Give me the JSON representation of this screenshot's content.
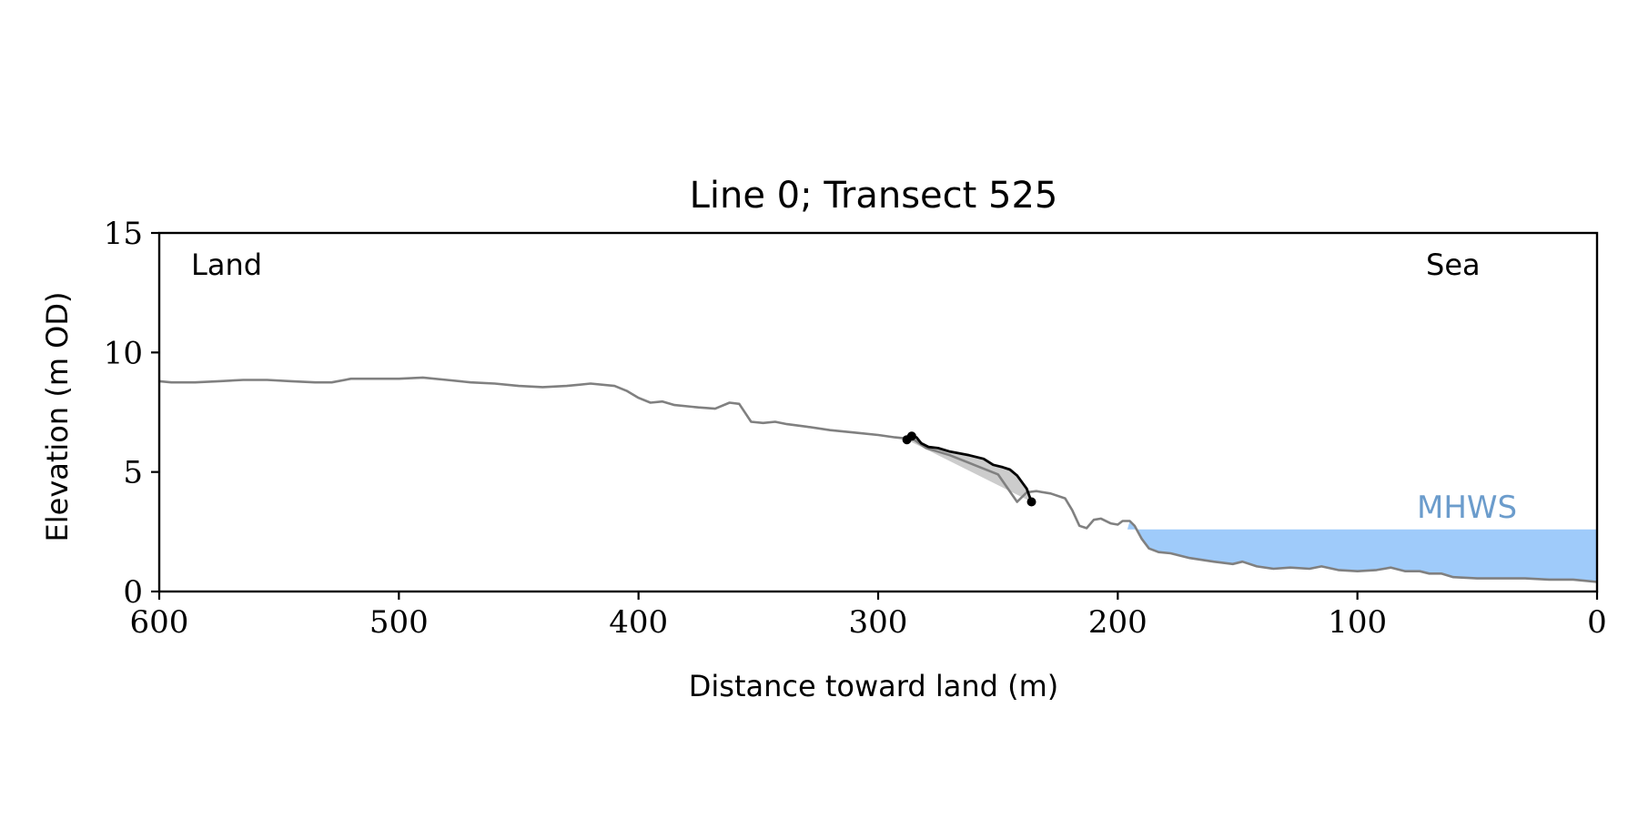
{
  "chart_data": {
    "type": "line",
    "title": "Line 0; Transect 525",
    "xlabel": "Distance toward land (m)",
    "ylabel": "Elevation (m OD)",
    "xlim": [
      600,
      0
    ],
    "ylim": [
      0,
      15
    ],
    "x_ticks": [
      600,
      500,
      400,
      300,
      200,
      100,
      0
    ],
    "y_ticks": [
      0,
      5,
      10,
      15
    ],
    "grid": false,
    "annotations": {
      "land": "Land",
      "sea": "Sea",
      "mhws": "MHWS"
    },
    "mhws": {
      "elevation": 2.6,
      "x_start": 196,
      "x_end": 0
    },
    "series": [
      {
        "role": "profile",
        "color": "#808080",
        "points": [
          [
            600,
            8.8
          ],
          [
            595,
            8.75
          ],
          [
            585,
            8.75
          ],
          [
            575,
            8.8
          ],
          [
            565,
            8.85
          ],
          [
            555,
            8.85
          ],
          [
            545,
            8.8
          ],
          [
            535,
            8.75
          ],
          [
            528,
            8.75
          ],
          [
            520,
            8.9
          ],
          [
            510,
            8.9
          ],
          [
            500,
            8.9
          ],
          [
            490,
            8.95
          ],
          [
            480,
            8.85
          ],
          [
            470,
            8.75
          ],
          [
            460,
            8.7
          ],
          [
            450,
            8.6
          ],
          [
            440,
            8.55
          ],
          [
            430,
            8.6
          ],
          [
            420,
            8.7
          ],
          [
            410,
            8.6
          ],
          [
            405,
            8.4
          ],
          [
            400,
            8.1
          ],
          [
            395,
            7.9
          ],
          [
            390,
            7.95
          ],
          [
            385,
            7.8
          ],
          [
            375,
            7.7
          ],
          [
            368,
            7.65
          ],
          [
            362,
            7.9
          ],
          [
            358,
            7.85
          ],
          [
            353,
            7.1
          ],
          [
            348,
            7.05
          ],
          [
            343,
            7.1
          ],
          [
            338,
            7.0
          ],
          [
            330,
            6.9
          ],
          [
            320,
            6.75
          ],
          [
            310,
            6.65
          ],
          [
            300,
            6.55
          ],
          [
            293,
            6.45
          ],
          [
            288,
            6.4
          ],
          [
            285,
            6.35
          ],
          [
            280,
            6.0
          ],
          [
            270,
            5.7
          ],
          [
            260,
            5.3
          ],
          [
            250,
            4.9
          ],
          [
            242,
            3.75
          ],
          [
            238,
            4.15
          ],
          [
            234,
            4.2
          ],
          [
            228,
            4.1
          ],
          [
            222,
            3.9
          ],
          [
            219,
            3.4
          ],
          [
            216,
            2.75
          ],
          [
            213,
            2.65
          ],
          [
            210,
            3.0
          ],
          [
            207,
            3.05
          ],
          [
            203,
            2.85
          ],
          [
            200,
            2.8
          ],
          [
            198,
            2.95
          ],
          [
            195,
            2.95
          ],
          [
            193,
            2.75
          ],
          [
            190,
            2.2
          ],
          [
            187,
            1.8
          ],
          [
            183,
            1.65
          ],
          [
            178,
            1.6
          ],
          [
            170,
            1.4
          ],
          [
            160,
            1.25
          ],
          [
            152,
            1.15
          ],
          [
            148,
            1.25
          ],
          [
            142,
            1.05
          ],
          [
            135,
            0.95
          ],
          [
            128,
            1.0
          ],
          [
            120,
            0.95
          ],
          [
            115,
            1.05
          ],
          [
            108,
            0.9
          ],
          [
            100,
            0.85
          ],
          [
            92,
            0.9
          ],
          [
            86,
            1.0
          ],
          [
            80,
            0.85
          ],
          [
            74,
            0.85
          ],
          [
            70,
            0.75
          ],
          [
            65,
            0.75
          ],
          [
            60,
            0.6
          ],
          [
            50,
            0.55
          ],
          [
            40,
            0.55
          ],
          [
            30,
            0.55
          ],
          [
            20,
            0.5
          ],
          [
            10,
            0.5
          ],
          [
            5,
            0.45
          ],
          [
            0,
            0.4
          ]
        ]
      },
      {
        "role": "cliff_face",
        "color": "#000000",
        "points": [
          [
            288,
            6.35
          ],
          [
            286,
            6.5
          ],
          [
            284,
            6.45
          ],
          [
            282,
            6.2
          ],
          [
            279,
            6.05
          ],
          [
            275,
            6.0
          ],
          [
            270,
            5.85
          ],
          [
            262,
            5.7
          ],
          [
            256,
            5.55
          ],
          [
            252,
            5.3
          ],
          [
            248,
            5.2
          ],
          [
            245,
            5.1
          ],
          [
            242,
            4.85
          ],
          [
            238,
            4.3
          ],
          [
            236,
            3.75
          ]
        ],
        "markers": [
          [
            288,
            6.35
          ],
          [
            286,
            6.5
          ],
          [
            236,
            3.75
          ]
        ]
      }
    ],
    "shaded_region": {
      "color": "#cccccc",
      "upper": [
        [
          288,
          6.35
        ],
        [
          286,
          6.5
        ],
        [
          284,
          6.45
        ],
        [
          282,
          6.2
        ],
        [
          279,
          6.05
        ],
        [
          275,
          6.0
        ],
        [
          270,
          5.85
        ],
        [
          262,
          5.7
        ],
        [
          256,
          5.55
        ],
        [
          252,
          5.3
        ],
        [
          248,
          5.2
        ],
        [
          245,
          5.1
        ],
        [
          242,
          4.85
        ],
        [
          238,
          4.3
        ],
        [
          236,
          3.75
        ]
      ],
      "lower": [
        [
          236,
          3.75
        ],
        [
          288,
          6.35
        ]
      ]
    },
    "colors": {
      "mhws_fill": "#9fcbfa",
      "mhws_label": "#6b9ccc"
    }
  }
}
